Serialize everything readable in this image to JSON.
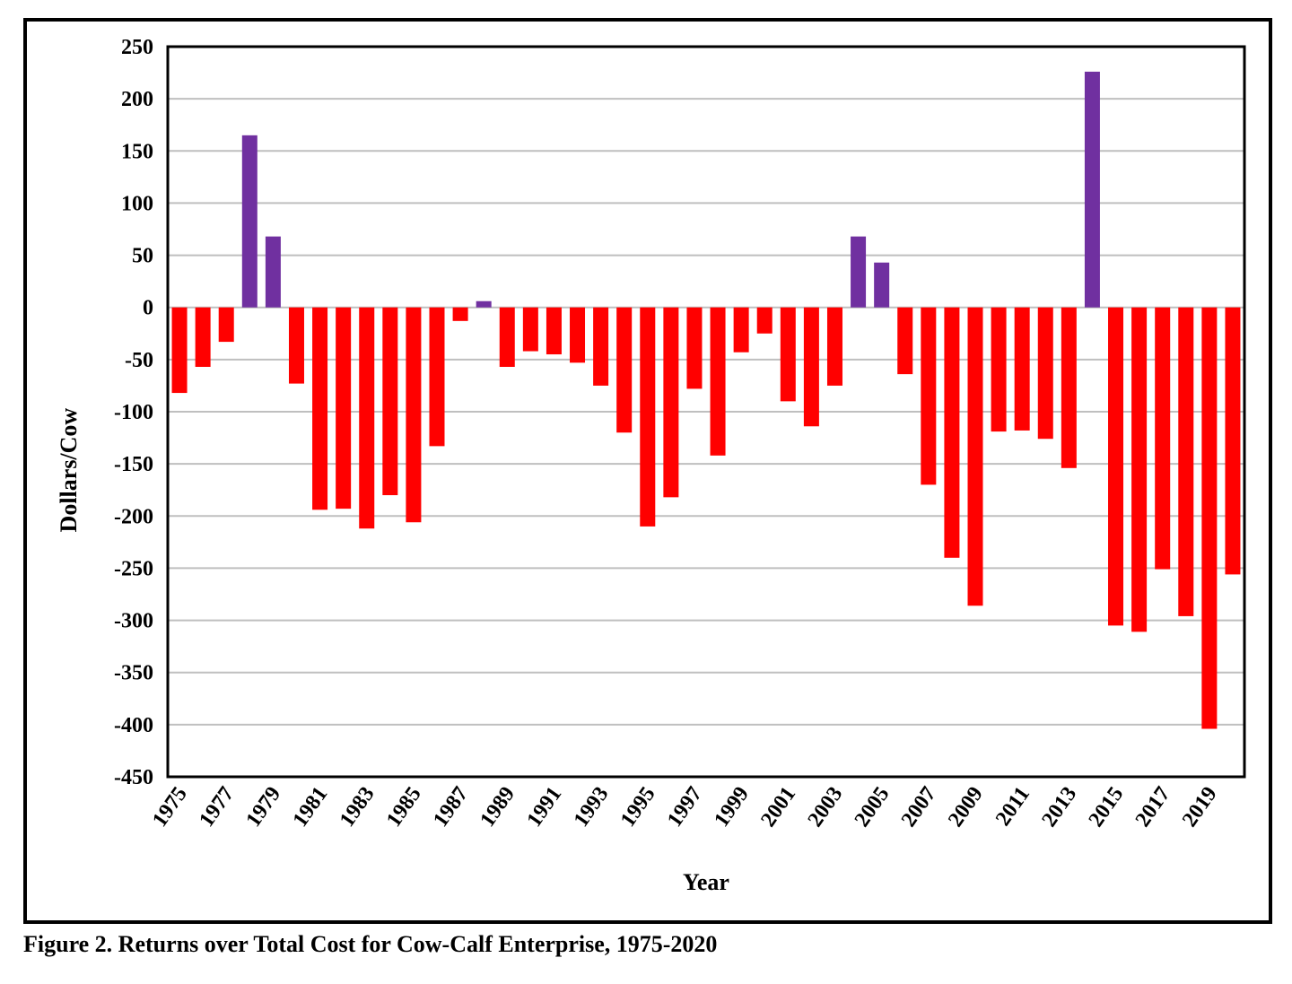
{
  "caption": "Figure 2. Returns over Total Cost for Cow-Calf Enterprise, 1975-2020",
  "colors": {
    "positive": "#7030A0",
    "negative": "#FF0000",
    "grid": "#bfbfbf",
    "frame": "#000000"
  },
  "chart_data": {
    "type": "bar",
    "title": "",
    "xlabel": "Year",
    "ylabel": "Dollars/Cow",
    "ylim": [
      -450,
      250
    ],
    "ytick_step": 50,
    "grid": "horizontal",
    "legend": "none",
    "categories": [
      1975,
      1976,
      1977,
      1978,
      1979,
      1980,
      1981,
      1982,
      1983,
      1984,
      1985,
      1986,
      1987,
      1988,
      1989,
      1990,
      1991,
      1992,
      1993,
      1994,
      1995,
      1996,
      1997,
      1998,
      1999,
      2000,
      2001,
      2002,
      2003,
      2004,
      2005,
      2006,
      2007,
      2008,
      2009,
      2010,
      2011,
      2012,
      2013,
      2014,
      2015,
      2016,
      2017,
      2018,
      2019,
      2020
    ],
    "x_tick_labels": [
      "1975",
      "1977",
      "1979",
      "1981",
      "1983",
      "1985",
      "1987",
      "1989",
      "1991",
      "1993",
      "1995",
      "1997",
      "1999",
      "2001",
      "2003",
      "2005",
      "2007",
      "2009",
      "2011",
      "2013",
      "2015",
      "2017",
      "2019"
    ],
    "values": [
      -82,
      -57,
      -33,
      165,
      68,
      -73,
      -194,
      -193,
      -212,
      -180,
      -206,
      -133,
      -13,
      6,
      -57,
      -42,
      -45,
      -53,
      -75,
      -120,
      -210,
      -182,
      -78,
      -142,
      -43,
      -25,
      -90,
      -114,
      -75,
      68,
      43,
      -64,
      -170,
      -240,
      -286,
      -119,
      -118,
      -126,
      -154,
      226,
      -305,
      -311,
      -251,
      -296,
      -404,
      -256
    ]
  }
}
